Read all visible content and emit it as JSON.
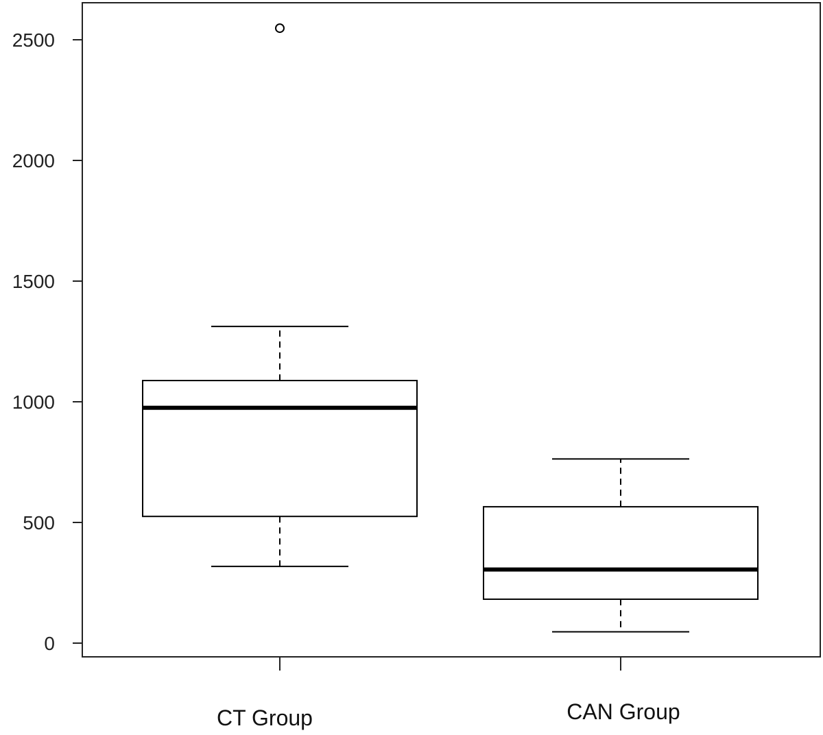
{
  "chart_data": {
    "type": "box",
    "title": "",
    "xlabel": "",
    "ylabel": "",
    "ylim": [
      -50,
      2620
    ],
    "yticks": [
      0,
      500,
      1000,
      1500,
      2000,
      2500
    ],
    "ytick_labels": [
      "0",
      "500",
      "1000",
      "1500",
      "2000",
      "2500"
    ],
    "grid": false,
    "categories": [
      "CT Group",
      "CAN Group"
    ],
    "boxes": [
      {
        "category": "CT Group",
        "whisker_low": 318,
        "q1": 525,
        "median": 975,
        "q3": 1088,
        "whisker_high": 1312,
        "outliers": [
          2548
        ]
      },
      {
        "category": "CAN Group",
        "whisker_low": 47,
        "q1": 182,
        "median": 305,
        "q3": 565,
        "whisker_high": 763,
        "outliers": []
      }
    ],
    "colors": {
      "box_fill": "#ffffff",
      "stroke": "#000000"
    }
  }
}
